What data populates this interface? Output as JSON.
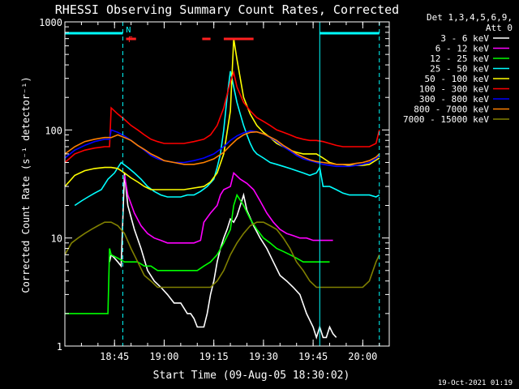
{
  "chart_data": {
    "type": "line",
    "title": "RHESSI Observing Summary Count Rates, Corrected",
    "xlabel": "Start Time (09-Aug-05 18:30:02)",
    "ylabel": "Corrected Count Rate (s⁻¹ detector⁻¹)",
    "x_unit": "minutes after 18:30:02",
    "xlim": [
      0,
      98
    ],
    "ylim": [
      1,
      1000
    ],
    "yscale": "log",
    "x_ticks": [
      {
        "x": 15,
        "label": "18:45"
      },
      {
        "x": 30,
        "label": "19:00"
      },
      {
        "x": 45,
        "label": "19:15"
      },
      {
        "x": 60,
        "label": "19:30"
      },
      {
        "x": 75,
        "label": "19:45"
      },
      {
        "x": 90,
        "label": "20:00"
      }
    ],
    "y_ticks": [
      {
        "y": 1,
        "label": "1"
      },
      {
        "y": 10,
        "label": "10"
      },
      {
        "y": 100,
        "label": "100"
      },
      {
        "y": 1000,
        "label": "1000"
      }
    ],
    "legend_header": [
      "Det 1,3,4,5,6,9,",
      "Att 0"
    ],
    "legend_position": "right",
    "footer_timestamp": "19-Oct-2021 01:19",
    "flags": [
      {
        "label": "N",
        "color": "#00ffff",
        "segments": [
          [
            0,
            17.5
          ],
          [
            77,
            95
          ]
        ]
      },
      {
        "label": "F",
        "color": "#ff2020",
        "segments": [
          [
            18.5,
            21.5
          ],
          [
            41.5,
            44
          ],
          [
            48,
            57
          ]
        ]
      }
    ],
    "vertical_markers": [
      {
        "x": 17.5,
        "style": "dashed",
        "color": "#00ffff"
      },
      {
        "x": 77,
        "style": "solid",
        "color": "#00ffff"
      },
      {
        "x": 95,
        "style": "dashed",
        "color": "#00ffff"
      }
    ],
    "series": [
      {
        "name": "3 - 6 keV",
        "color": "#ffffff",
        "x": [
          13.5,
          14,
          15,
          16,
          17,
          18,
          19,
          21,
          23,
          25,
          27,
          29,
          31,
          33,
          35,
          37,
          38,
          39,
          40,
          41,
          42,
          43,
          44,
          45,
          46,
          47,
          48,
          49,
          50,
          51,
          52,
          53,
          54,
          55,
          57,
          59,
          61,
          63,
          65,
          67,
          69,
          71,
          73,
          75,
          76,
          77,
          78,
          79,
          80,
          81,
          82
        ],
        "y": [
          6,
          7,
          6.5,
          6,
          5.5,
          40,
          20,
          12,
          8,
          5,
          4,
          3.5,
          3,
          2.5,
          2.5,
          2,
          2,
          1.8,
          1.5,
          1.5,
          1.5,
          2,
          3,
          4,
          6,
          8,
          10,
          12,
          15,
          14,
          16,
          20,
          25,
          18,
          13,
          10,
          8,
          6,
          4.5,
          4,
          3.5,
          3,
          2,
          1.5,
          1.2,
          1.5,
          1.2,
          1.2,
          1.5,
          1.3,
          1.2
        ]
      },
      {
        "name": "6 - 12 keV",
        "color": "#ff00ff",
        "x": [
          18,
          19,
          21,
          23,
          25,
          27,
          29,
          31,
          33,
          35,
          37,
          39,
          41,
          42,
          44,
          46,
          47,
          48,
          50,
          51,
          53,
          55,
          57,
          59,
          61,
          63,
          65,
          67,
          69,
          71,
          73,
          75,
          77,
          79,
          80,
          81
        ],
        "y": [
          38,
          25,
          17,
          13,
          11,
          10,
          9.5,
          9,
          9,
          9,
          9,
          9,
          9.5,
          14,
          17,
          20,
          25,
          28,
          30,
          40,
          35,
          32,
          28,
          22,
          17,
          14,
          12,
          11,
          10.5,
          10,
          10,
          9.5,
          9.5,
          9.5,
          9.5,
          9.5
        ]
      },
      {
        "name": "12 - 25 keV",
        "color": "#00ff00",
        "x": [
          0,
          5,
          10,
          13,
          13.5,
          14,
          16,
          18,
          20,
          22,
          24,
          26,
          28,
          30,
          32,
          34,
          36,
          38,
          40,
          42,
          44,
          46,
          48,
          50,
          51,
          52,
          54,
          56,
          58,
          60,
          62,
          64,
          66,
          68,
          70,
          72,
          74,
          76,
          78,
          80
        ],
        "y": [
          2,
          2,
          2,
          2,
          8,
          7,
          6.5,
          6,
          6,
          6,
          5.5,
          5.5,
          5,
          5,
          5,
          5,
          5,
          5,
          5,
          5.5,
          6,
          7,
          9,
          12,
          20,
          25,
          20,
          15,
          12,
          10,
          9,
          8,
          7.5,
          7,
          6.5,
          6,
          6,
          6,
          6,
          6
        ]
      },
      {
        "name": "25 - 50 keV",
        "color": "#00ffff",
        "x": [
          3,
          5,
          7,
          9,
          11,
          13,
          15,
          17,
          19,
          21,
          23,
          25,
          27,
          29,
          31,
          33,
          35,
          37,
          39,
          41,
          43,
          45,
          46,
          47,
          48,
          49,
          50,
          51,
          52,
          53,
          54,
          55,
          56,
          57,
          58,
          60,
          62,
          64,
          66,
          68,
          70,
          72,
          74,
          76,
          77,
          78,
          80,
          82,
          84,
          86,
          88,
          90,
          92,
          94,
          95
        ],
        "y": [
          20,
          22,
          24,
          26,
          28,
          35,
          40,
          50,
          45,
          40,
          35,
          30,
          27,
          25,
          24,
          24,
          24,
          25,
          25,
          27,
          30,
          35,
          45,
          60,
          100,
          200,
          350,
          250,
          180,
          140,
          110,
          90,
          75,
          65,
          60,
          55,
          50,
          48,
          46,
          44,
          42,
          40,
          38,
          40,
          45,
          30,
          30,
          28,
          26,
          25,
          25,
          25,
          25,
          24,
          25
        ]
      },
      {
        "name": "50 - 100 keV",
        "color": "#ffff00",
        "x": [
          0,
          3,
          6,
          9,
          12,
          14,
          16,
          18,
          20,
          22,
          24,
          26,
          28,
          30,
          33,
          36,
          39,
          42,
          44,
          46,
          48,
          50,
          51,
          52,
          54,
          56,
          58,
          60,
          62,
          64,
          66,
          68,
          70,
          72,
          74,
          76,
          78,
          80,
          82,
          84,
          86,
          88,
          90,
          92,
          95
        ],
        "y": [
          30,
          38,
          42,
          44,
          45,
          45,
          44,
          40,
          36,
          33,
          30,
          28,
          28,
          28,
          28,
          28,
          29,
          30,
          33,
          40,
          60,
          150,
          700,
          450,
          200,
          140,
          110,
          95,
          85,
          75,
          70,
          65,
          62,
          60,
          60,
          60,
          55,
          50,
          48,
          48,
          47,
          47,
          47,
          48,
          55
        ]
      },
      {
        "name": "100 - 300 keV",
        "color": "#ff0000",
        "x": [
          0,
          3,
          6,
          9,
          12,
          13.5,
          14,
          16,
          18,
          20,
          22,
          24,
          26,
          28,
          30,
          33,
          36,
          39,
          42,
          44,
          46,
          48,
          50,
          51,
          52,
          54,
          56,
          58,
          60,
          62,
          64,
          66,
          68,
          70,
          72,
          74,
          76,
          78,
          80,
          82,
          84,
          86,
          88,
          90,
          92,
          94,
          95
        ],
        "y": [
          50,
          60,
          65,
          68,
          70,
          70,
          160,
          140,
          125,
          110,
          100,
          90,
          82,
          78,
          75,
          75,
          75,
          78,
          82,
          90,
          110,
          160,
          280,
          340,
          250,
          180,
          150,
          130,
          120,
          110,
          100,
          95,
          90,
          85,
          82,
          80,
          80,
          78,
          75,
          72,
          70,
          70,
          70,
          70,
          70,
          75,
          100
        ]
      },
      {
        "name": "300 - 800 keV",
        "color": "#0000ff",
        "x": [
          0,
          3,
          6,
          9,
          12,
          13.5,
          14,
          16,
          18,
          20,
          22,
          24,
          26,
          28,
          30,
          33,
          36,
          39,
          42,
          45,
          48,
          50,
          52,
          54,
          56,
          58,
          60,
          62,
          64,
          66,
          68,
          70,
          72,
          74,
          76,
          78,
          80,
          82,
          84,
          86,
          88,
          90,
          92,
          94,
          95
        ],
        "y": [
          55,
          65,
          72,
          78,
          82,
          82,
          100,
          95,
          88,
          80,
          72,
          65,
          58,
          54,
          52,
          50,
          50,
          52,
          55,
          60,
          70,
          80,
          88,
          94,
          98,
          96,
          92,
          85,
          78,
          70,
          64,
          58,
          54,
          52,
          50,
          48,
          47,
          46,
          46,
          46,
          47,
          48,
          50,
          54,
          58
        ]
      },
      {
        "name": "800 - 7000 keV",
        "color": "#ff8000",
        "x": [
          0,
          3,
          6,
          9,
          12,
          14,
          16,
          18,
          20,
          22,
          24,
          26,
          28,
          30,
          33,
          36,
          39,
          42,
          45,
          48,
          50,
          52,
          54,
          56,
          58,
          60,
          62,
          64,
          66,
          68,
          70,
          72,
          74,
          76,
          78,
          80,
          82,
          84,
          86,
          88,
          90,
          92,
          94,
          95
        ],
        "y": [
          60,
          70,
          78,
          82,
          85,
          85,
          90,
          85,
          80,
          72,
          66,
          60,
          56,
          52,
          50,
          48,
          48,
          50,
          54,
          62,
          72,
          82,
          90,
          95,
          96,
          92,
          86,
          80,
          72,
          66,
          60,
          56,
          53,
          51,
          50,
          49,
          48,
          48,
          48,
          49,
          50,
          52,
          56,
          60
        ]
      },
      {
        "name": "7000 - 15000 keV",
        "color": "#808000",
        "x": [
          0,
          2,
          4,
          6,
          8,
          10,
          12,
          14,
          16,
          18,
          20,
          22,
          24,
          26,
          28,
          30,
          32,
          34,
          36,
          38,
          40,
          42,
          44,
          46,
          48,
          50,
          52,
          54,
          56,
          58,
          60,
          62,
          64,
          66,
          68,
          70,
          72,
          74,
          76,
          78,
          80,
          82,
          84,
          86,
          88,
          90,
          92,
          94,
          95
        ],
        "y": [
          7,
          9,
          10,
          11,
          12,
          13,
          14,
          14,
          13,
          11,
          8,
          6,
          4.5,
          4,
          3.5,
          3.5,
          3.5,
          3.5,
          3.5,
          3.5,
          3.5,
          3.5,
          3.5,
          4,
          5,
          7,
          9,
          11,
          13,
          14,
          14,
          13,
          12,
          10,
          8,
          6,
          5,
          4,
          3.5,
          3.5,
          3.5,
          3.5,
          3.5,
          3.5,
          3.5,
          3.5,
          4,
          6,
          7
        ]
      }
    ]
  }
}
